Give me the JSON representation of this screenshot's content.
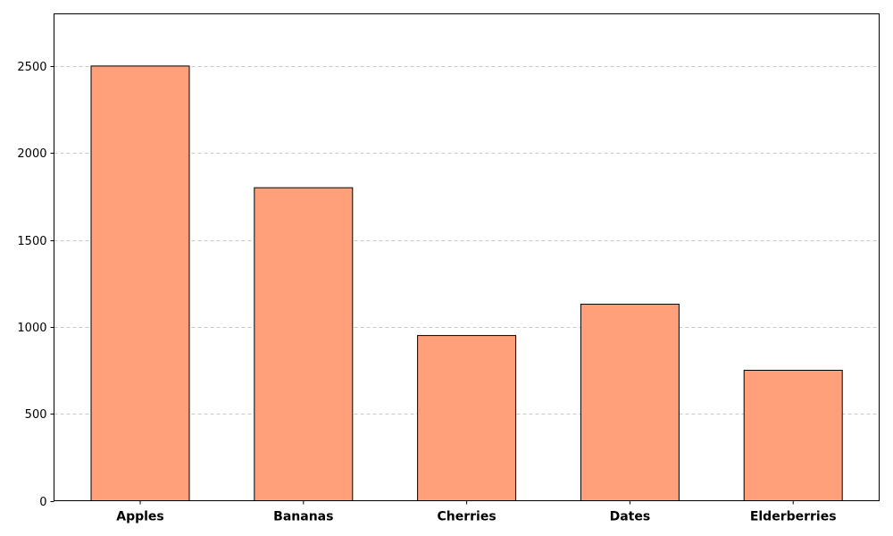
{
  "chart_data": {
    "type": "bar",
    "title": "",
    "xlabel": "",
    "ylabel": "",
    "categories": [
      "Apples",
      "Bananas",
      "Cherries",
      "Dates",
      "Elderberries"
    ],
    "values": [
      2500,
      1800,
      950,
      1130,
      750
    ],
    "ylim": [
      0,
      2800
    ],
    "yticks": [
      0,
      500,
      1000,
      1500,
      2000,
      2500
    ],
    "grid": "y-axis dashed",
    "legend": "none",
    "colors": {
      "bar_fill": "#FFA07A",
      "bar_edge": "#000000",
      "grid": "#c8c8c8",
      "axis": "#000000"
    }
  }
}
